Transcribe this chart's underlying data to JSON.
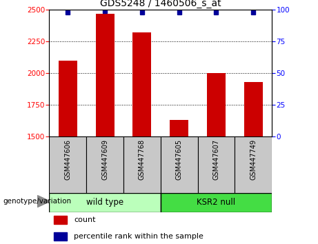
{
  "title": "GDS5248 / 1460506_s_at",
  "samples": [
    "GSM447606",
    "GSM447609",
    "GSM447768",
    "GSM447605",
    "GSM447607",
    "GSM447749"
  ],
  "counts": [
    2100,
    2470,
    2320,
    1630,
    2000,
    1930
  ],
  "percentile_ranks": [
    98,
    99,
    98,
    98,
    98,
    98
  ],
  "ylim_left": [
    1500,
    2500
  ],
  "ylim_right": [
    0,
    100
  ],
  "yticks_left": [
    1500,
    1750,
    2000,
    2250,
    2500
  ],
  "yticks_right": [
    0,
    25,
    50,
    75,
    100
  ],
  "bar_color": "#CC0000",
  "dot_color": "#000099",
  "label_bg_color": "#C8C8C8",
  "wt_color": "#BBFFBB",
  "ksr_color": "#44DD44",
  "legend_count_color": "#CC0000",
  "legend_pct_color": "#000099",
  "genotype_label": "genotype/variation",
  "wt_label": "wild type",
  "ksr_label": "KSR2 null",
  "count_legend": "count",
  "pct_legend": "percentile rank within the sample"
}
